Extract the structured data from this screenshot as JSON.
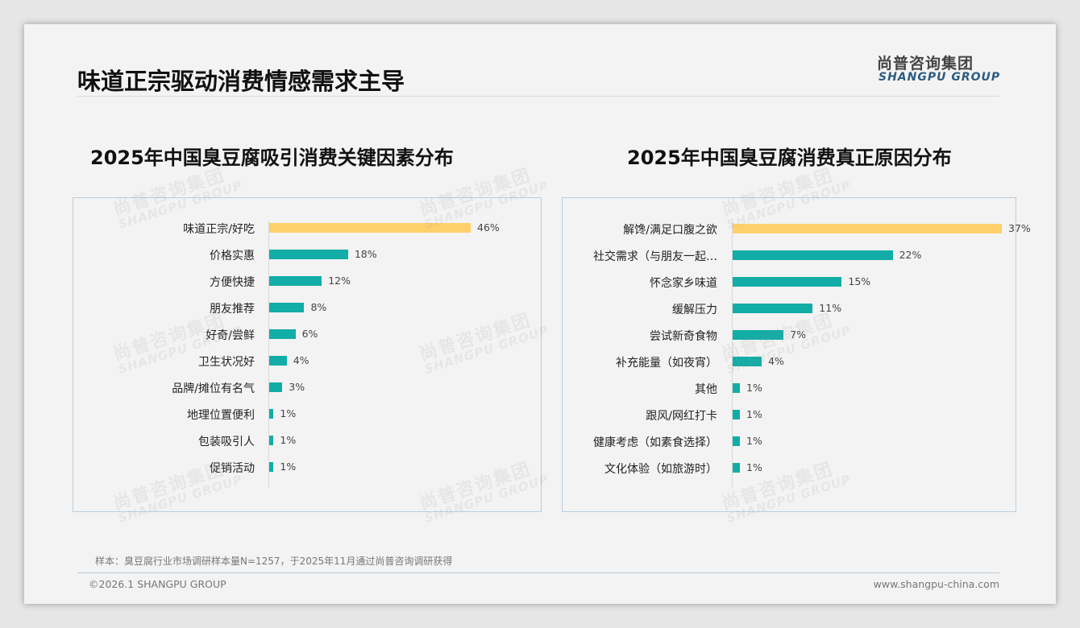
{
  "header": {
    "title": "味道正宗驱动消费情感需求主导"
  },
  "logo": {
    "cn": "尚普咨询集团",
    "en": "SHANGPU GROUP"
  },
  "colors": {
    "highlight": "#fdd06a",
    "bar": "#12ada6"
  },
  "chart_data": [
    {
      "type": "bar",
      "orientation": "horizontal",
      "title": "2025年中国臭豆腐吸引消费关键因素分布",
      "categories": [
        "味道正宗/好吃",
        "价格实惠",
        "方便快捷",
        "朋友推荐",
        "好奇/尝鲜",
        "卫生状况好",
        "品牌/摊位有名气",
        "地理位置便利",
        "包装吸引人",
        "促销活动"
      ],
      "values": [
        46,
        18,
        12,
        8,
        6,
        4,
        3,
        1,
        1,
        1
      ],
      "labels": [
        "46%",
        "18%",
        "12%",
        "8%",
        "6%",
        "4%",
        "3%",
        "1%",
        "1%",
        "1%"
      ],
      "unit": "%",
      "xlim": [
        0,
        46
      ]
    },
    {
      "type": "bar",
      "orientation": "horizontal",
      "title": "2025年中国臭豆腐消费真正原因分布",
      "categories": [
        "解馋/满足口腹之欲",
        "社交需求（与朋友一起…",
        "怀念家乡味道",
        "缓解压力",
        "尝试新奇食物",
        "补充能量（如夜宵）",
        "其他",
        "跟风/网红打卡",
        "健康考虑（如素食选择）",
        "文化体验（如旅游时）"
      ],
      "values": [
        37,
        22,
        15,
        11,
        7,
        4,
        1,
        1,
        1,
        1
      ],
      "labels": [
        "37%",
        "22%",
        "15%",
        "11%",
        "7%",
        "4%",
        "1%",
        "1%",
        "1%",
        "1%"
      ],
      "unit": "%",
      "xlim": [
        0,
        37
      ]
    }
  ],
  "footer": {
    "note": "样本：臭豆腐行业市场调研样本量N=1257，于2025年11月通过尚普咨询调研获得",
    "copyright": "©2026.1 SHANGPU GROUP",
    "url": "www.shangpu-china.com"
  }
}
